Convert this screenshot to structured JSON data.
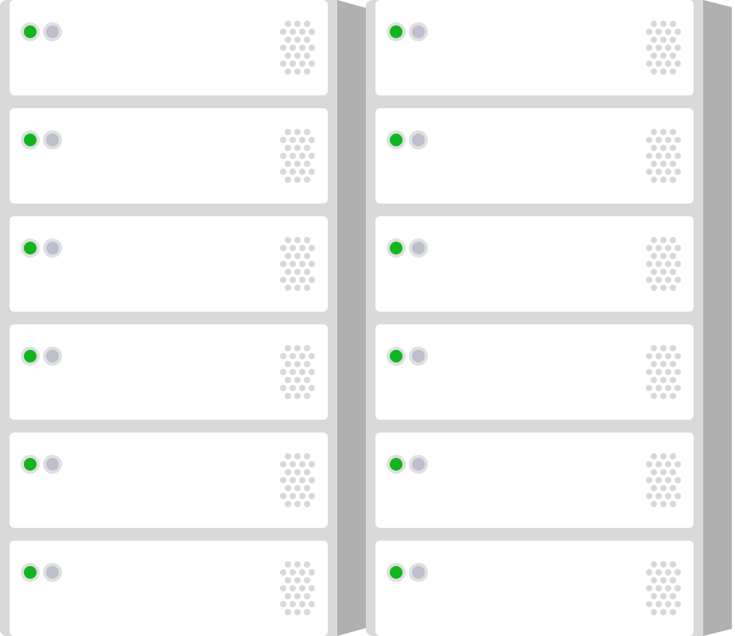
{
  "colors": {
    "rack_frame": "#d9d9d9",
    "rack_side": "#b0b0b0",
    "unit_face": "#ffffff",
    "power_led": "#13b51f",
    "activity_led": "#bcbfcc",
    "led_ring": "#e0e0e0",
    "vent_holes": "#d8d8d8"
  },
  "racks": [
    {
      "id": "left",
      "units": [
        {
          "power_led": "on",
          "activity_led": "off",
          "icon": "vent-grille-icon"
        },
        {
          "power_led": "on",
          "activity_led": "off",
          "icon": "vent-grille-icon"
        },
        {
          "power_led": "on",
          "activity_led": "off",
          "icon": "vent-grille-icon"
        },
        {
          "power_led": "on",
          "activity_led": "off",
          "icon": "vent-grille-icon"
        },
        {
          "power_led": "on",
          "activity_led": "off",
          "icon": "vent-grille-icon"
        },
        {
          "power_led": "on",
          "activity_led": "off",
          "icon": "vent-grille-icon"
        }
      ]
    },
    {
      "id": "right",
      "units": [
        {
          "power_led": "on",
          "activity_led": "off",
          "icon": "vent-grille-icon"
        },
        {
          "power_led": "on",
          "activity_led": "off",
          "icon": "vent-grille-icon"
        },
        {
          "power_led": "on",
          "activity_led": "off",
          "icon": "vent-grille-icon"
        },
        {
          "power_led": "on",
          "activity_led": "off",
          "icon": "vent-grille-icon"
        },
        {
          "power_led": "on",
          "activity_led": "off",
          "icon": "vent-grille-icon"
        },
        {
          "power_led": "on",
          "activity_led": "off",
          "icon": "vent-grille-icon"
        }
      ]
    }
  ]
}
